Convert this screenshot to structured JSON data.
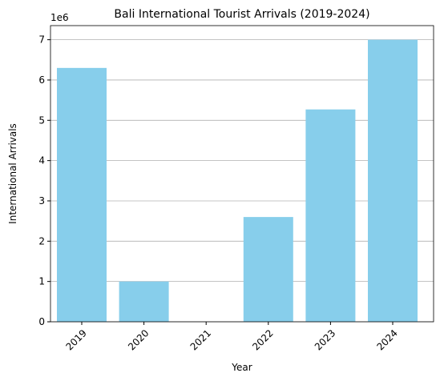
{
  "chart_data": {
    "type": "bar",
    "title": "Bali International Tourist Arrivals (2019-2024)",
    "x_label": "Year",
    "y_label": "International Arrivals",
    "y_offset_label": "1e6",
    "categories": [
      "2019",
      "2020",
      "2021",
      "2022",
      "2023",
      "2024"
    ],
    "values": [
      6300000,
      1000000,
      0,
      2600000,
      5270000,
      7000000
    ],
    "color": "#87ceeb",
    "ylim": [
      0,
      7350000
    ],
    "yticks": [
      0,
      {
        "value": 1000000,
        "label": "1"
      },
      {
        "value": 2000000,
        "label": "2"
      },
      {
        "value": 3000000,
        "label": "3"
      },
      {
        "value": 4000000,
        "label": "4"
      },
      {
        "value": 5000000,
        "label": "5"
      },
      {
        "value": 6000000,
        "label": "6"
      },
      {
        "value": 7000000,
        "label": "7"
      }
    ],
    "grid": true
  }
}
